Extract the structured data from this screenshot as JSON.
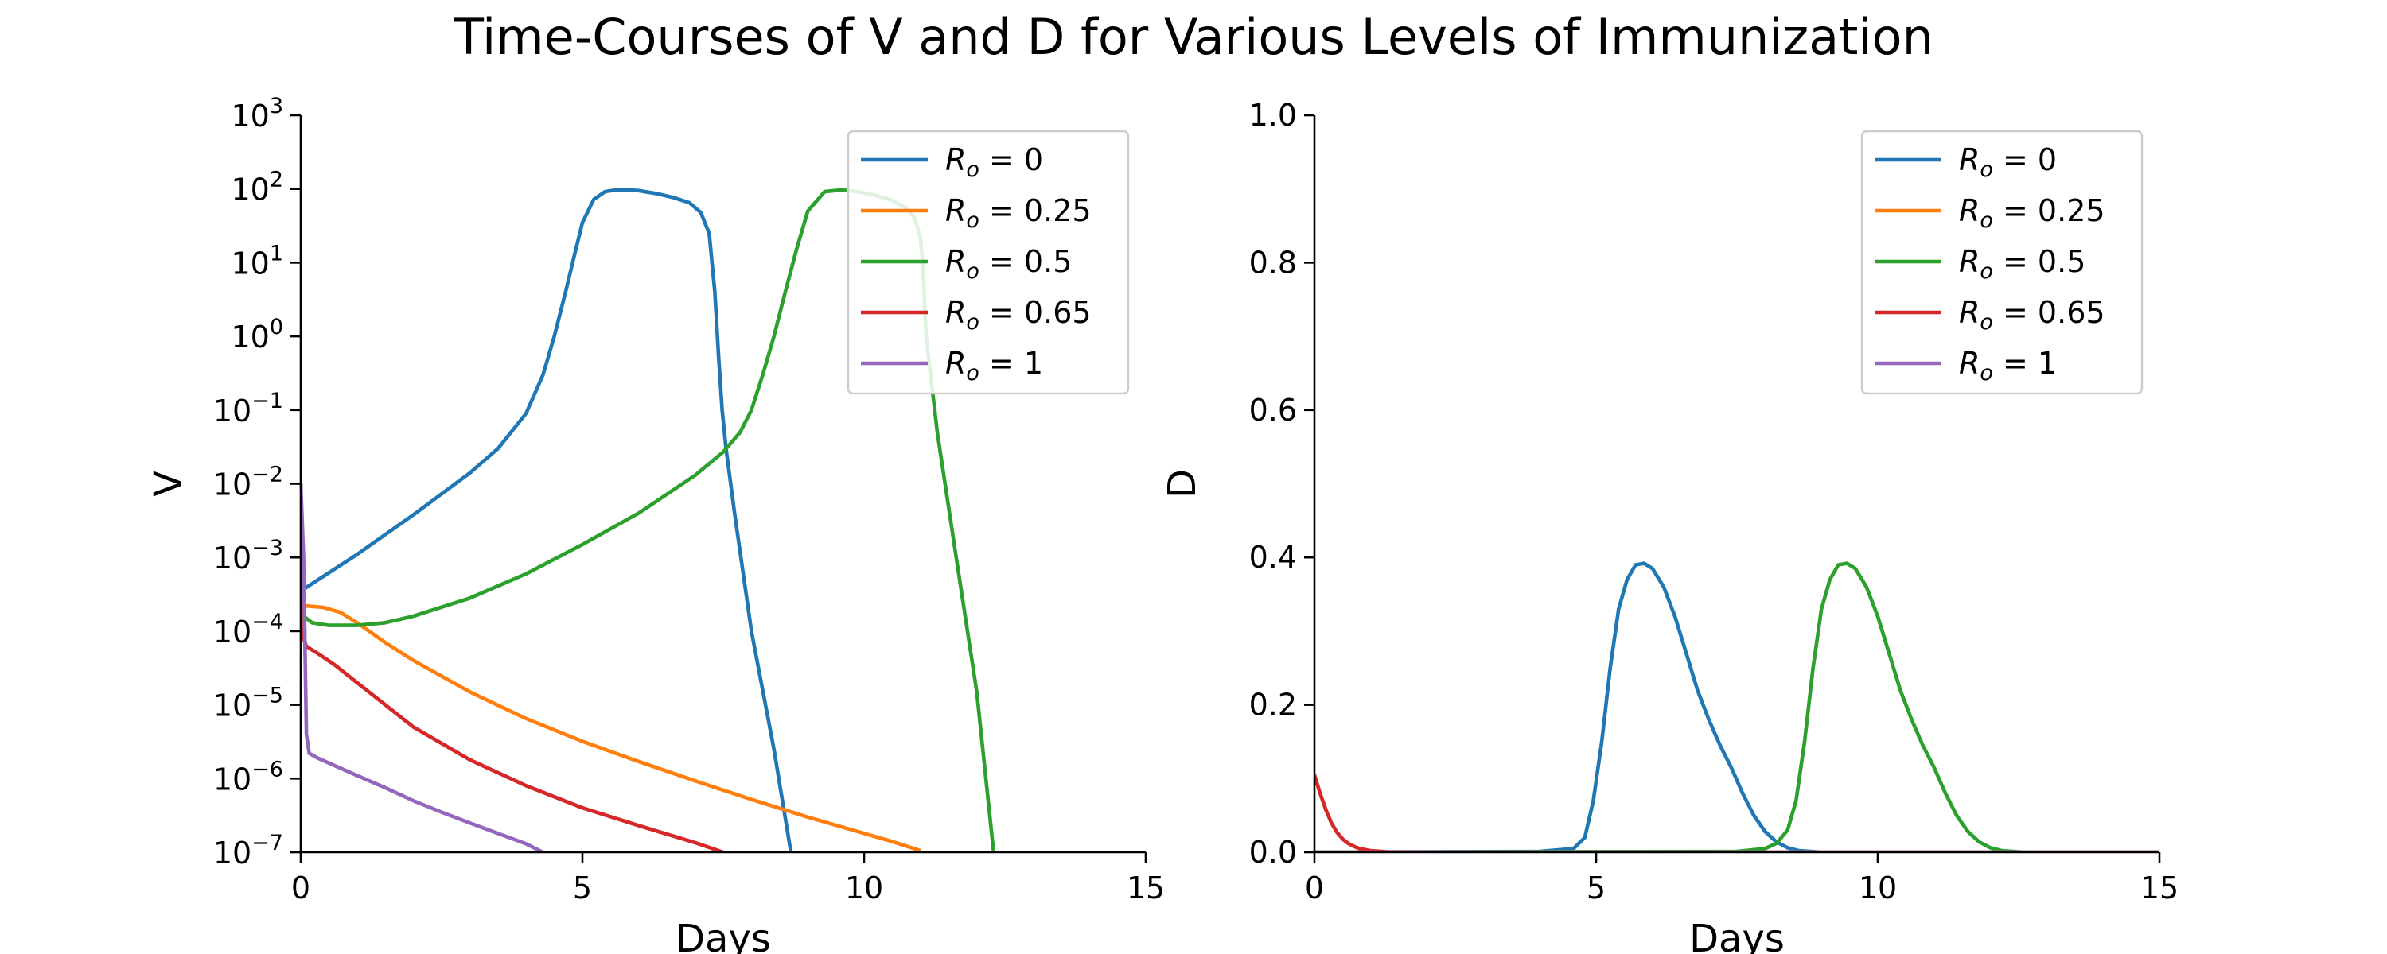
{
  "figure": {
    "title": "Time-Courses of V and D for Various Levels of Immunization"
  },
  "chart_data": [
    {
      "type": "line",
      "id": "v",
      "xlabel": "Days",
      "ylabel": "V",
      "xlim": [
        0,
        15
      ],
      "ylim": [
        1e-07,
        1000
      ],
      "yscale": "log",
      "xticks": [
        0,
        5,
        10,
        15
      ],
      "xtick_labels": [
        "0",
        "5",
        "10",
        "15"
      ],
      "yticks": [
        1e-07,
        1e-06,
        1e-05,
        0.0001,
        0.001,
        0.01,
        0.1,
        1.0,
        10.0,
        100.0,
        1000.0
      ],
      "ytick_labels": [
        {
          "base": "10",
          "exp": "−7"
        },
        {
          "base": "10",
          "exp": "−6"
        },
        {
          "base": "10",
          "exp": "−5"
        },
        {
          "base": "10",
          "exp": "−4"
        },
        {
          "base": "10",
          "exp": "−3"
        },
        {
          "base": "10",
          "exp": "−2"
        },
        {
          "base": "10",
          "exp": "−1"
        },
        {
          "base": "10",
          "exp": "0"
        },
        {
          "base": "10",
          "exp": "1"
        },
        {
          "base": "10",
          "exp": "2"
        },
        {
          "base": "10",
          "exp": "3"
        }
      ],
      "legend": "upper right",
      "grid": false,
      "series": [
        {
          "name": "R_o = 0",
          "label_main": "R",
          "label_sub": "o",
          "label_rest": " = 0",
          "color": "#1f77b4",
          "x": [
            0,
            1,
            2,
            3,
            3.5,
            4,
            4.3,
            4.5,
            4.7,
            4.85,
            5,
            5.2,
            5.4,
            5.6,
            5.8,
            6,
            6.3,
            6.6,
            6.9,
            7.1,
            7.25,
            7.35,
            7.42,
            7.48,
            7.55,
            7.7,
            8,
            8.4,
            8.7
          ],
          "y": [
            0.00035,
            0.0011,
            0.0038,
            0.014,
            0.03,
            0.09,
            0.3,
            1,
            4,
            12,
            35,
            72,
            92,
            97,
            97,
            95,
            87,
            77,
            65,
            48,
            25,
            4,
            0.5,
            0.1,
            0.03,
            0.004,
            0.0001,
            2.5e-06,
            1e-07
          ]
        },
        {
          "name": "R_o = 0.25",
          "label_main": "R",
          "label_sub": "o",
          "label_rest": " = 0.25",
          "color": "#ff7f0e",
          "x": [
            0,
            0.05,
            0.1,
            0.4,
            0.7,
            1,
            1.5,
            2,
            3,
            4,
            5,
            6,
            7,
            8,
            9,
            10,
            10.5,
            11
          ],
          "y": [
            0.00015,
            0.00021,
            0.00022,
            0.00021,
            0.00018,
            0.00013,
            7e-05,
            4e-05,
            1.5e-05,
            6.5e-06,
            3.2e-06,
            1.7e-06,
            9.3e-07,
            5.2e-07,
            3e-07,
            1.8e-07,
            1.4e-07,
            1.05e-07
          ]
        },
        {
          "name": "R_o = 0.5",
          "label_main": "R",
          "label_sub": "o",
          "label_rest": " = 0.5",
          "color": "#2ca02c",
          "x": [
            0,
            0.05,
            0.2,
            0.5,
            1,
            1.5,
            2,
            3,
            4,
            5,
            6,
            7,
            7.5,
            7.8,
            8,
            8.2,
            8.4,
            8.6,
            8.8,
            9,
            9.3,
            9.6,
            9.9,
            10.2,
            10.5,
            10.75,
            10.9,
            11,
            11.05,
            11.1,
            11.3,
            11.6,
            12,
            12.3
          ],
          "y": [
            0.01,
            0.00016,
            0.00013,
            0.00012,
            0.00012,
            0.00013,
            0.00016,
            0.00028,
            0.0006,
            0.0015,
            0.004,
            0.013,
            0.027,
            0.05,
            0.1,
            0.3,
            1,
            4,
            15,
            50,
            92,
            97,
            92,
            82,
            70,
            55,
            40,
            22,
            8,
            1,
            0.05,
            0.0015,
            1.5e-05,
            1e-07
          ]
        },
        {
          "name": "R_o = 0.65",
          "label_main": "R",
          "label_sub": "o",
          "label_rest": " = 0.65",
          "color": "#d62728",
          "x": [
            0,
            0.05,
            0.1,
            0.3,
            0.6,
            1,
            1.5,
            2,
            3,
            4,
            5,
            6,
            7,
            7.5
          ],
          "y": [
            0.01,
            8e-05,
            6.2e-05,
            5e-05,
            3.5e-05,
            2e-05,
            1e-05,
            5e-06,
            1.8e-06,
            8e-07,
            4e-07,
            2.3e-07,
            1.35e-07,
            1e-07
          ]
        },
        {
          "name": "R_o = 1",
          "label_main": "R",
          "label_sub": "o",
          "label_rest": " = 1",
          "color": "#9467bd",
          "x": [
            0,
            0.05,
            0.1,
            0.15,
            0.3,
            0.6,
            1,
            1.5,
            2,
            2.5,
            3,
            3.5,
            4,
            4.3
          ],
          "y": [
            0.01,
            0.001,
            4e-06,
            2.2e-06,
            1.9e-06,
            1.5e-06,
            1.1e-06,
            7.5e-07,
            5e-07,
            3.5e-07,
            2.5e-07,
            1.8e-07,
            1.3e-07,
            1e-07
          ]
        }
      ]
    },
    {
      "type": "line",
      "id": "d",
      "xlabel": "Days",
      "ylabel": "D",
      "xlim": [
        0,
        15
      ],
      "ylim": [
        0,
        1
      ],
      "xticks": [
        0,
        5,
        10,
        15
      ],
      "xtick_labels": [
        "0",
        "5",
        "10",
        "15"
      ],
      "yticks": [
        0,
        0.2,
        0.4,
        0.6,
        0.8,
        1.0
      ],
      "ytick_labels": [
        "0.0",
        "0.2",
        "0.4",
        "0.6",
        "0.8",
        "1.0"
      ],
      "legend": "upper right",
      "grid": false,
      "series": [
        {
          "name": "R_o = 0",
          "label_main": "R",
          "label_sub": "o",
          "label_rest": " = 0",
          "color": "#1f77b4",
          "x": [
            0,
            4,
            4.6,
            4.8,
            4.95,
            5.1,
            5.25,
            5.4,
            5.55,
            5.7,
            5.85,
            6,
            6.2,
            6.4,
            6.6,
            6.8,
            7,
            7.2,
            7.4,
            7.6,
            7.8,
            8,
            8.2,
            8.4,
            8.6,
            9,
            15
          ],
          "y": [
            0,
            0.001,
            0.005,
            0.02,
            0.07,
            0.15,
            0.25,
            0.33,
            0.37,
            0.39,
            0.392,
            0.385,
            0.36,
            0.32,
            0.27,
            0.22,
            0.18,
            0.145,
            0.115,
            0.08,
            0.05,
            0.028,
            0.014,
            0.006,
            0.002,
            0,
            0
          ]
        },
        {
          "name": "R_o = 0.25",
          "label_main": "R",
          "label_sub": "o",
          "label_rest": " = 0.25",
          "color": "#ff7f0e",
          "x": [
            0,
            15
          ],
          "y": [
            0,
            0
          ]
        },
        {
          "name": "R_o = 0.5",
          "label_main": "R",
          "label_sub": "o",
          "label_rest": " = 0.5",
          "color": "#2ca02c",
          "x": [
            0,
            7.5,
            8,
            8.2,
            8.4,
            8.55,
            8.7,
            8.85,
            9,
            9.15,
            9.3,
            9.45,
            9.6,
            9.8,
            10,
            10.2,
            10.4,
            10.6,
            10.8,
            11,
            11.2,
            11.4,
            11.6,
            11.8,
            12,
            12.2,
            12.6,
            15
          ],
          "y": [
            0,
            0.001,
            0.005,
            0.012,
            0.03,
            0.07,
            0.15,
            0.25,
            0.33,
            0.37,
            0.39,
            0.392,
            0.385,
            0.36,
            0.32,
            0.27,
            0.22,
            0.18,
            0.145,
            0.115,
            0.08,
            0.05,
            0.028,
            0.014,
            0.006,
            0.002,
            0,
            0
          ]
        },
        {
          "name": "R_o = 0.65",
          "label_main": "R",
          "label_sub": "o",
          "label_rest": " = 0.65",
          "color": "#d62728",
          "x": [
            0,
            0.1,
            0.2,
            0.3,
            0.4,
            0.5,
            0.6,
            0.7,
            0.8,
            1,
            1.3,
            2,
            15
          ],
          "y": [
            0.105,
            0.08,
            0.058,
            0.04,
            0.027,
            0.018,
            0.012,
            0.008,
            0.005,
            0.002,
            0.0005,
            0,
            0
          ]
        },
        {
          "name": "R_o = 1",
          "label_main": "R",
          "label_sub": "o",
          "label_rest": " = 1",
          "color": "#9467bd",
          "x": [
            0,
            15
          ],
          "y": [
            0,
            0
          ]
        }
      ]
    }
  ]
}
